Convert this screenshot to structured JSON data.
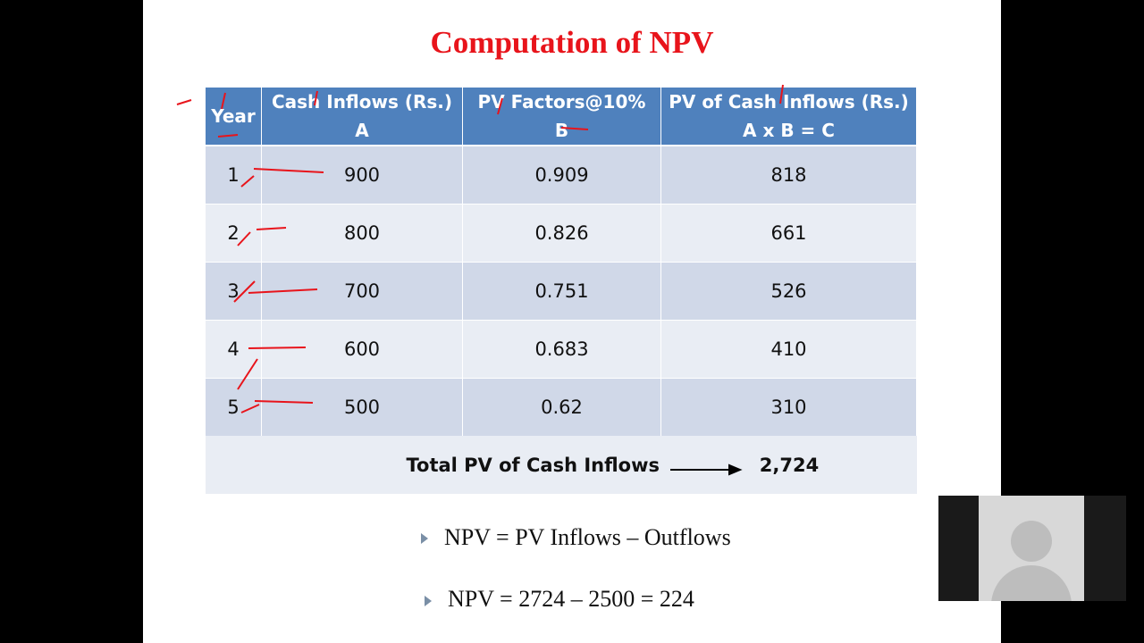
{
  "slide": {
    "title": "Computation of NPV",
    "table": {
      "header": [
        [
          "Year"
        ],
        [
          "Cash Inflows (Rs.)",
          "A"
        ],
        [
          "PV Factors@10%",
          "B"
        ],
        [
          "PV of Cash Inflows (Rs.)",
          "A x B = C"
        ]
      ],
      "rows": [
        [
          "1",
          "900",
          "0.909",
          "818"
        ],
        [
          "2",
          "800",
          "0.826",
          "661"
        ],
        [
          "3",
          "700",
          "0.751",
          "526"
        ],
        [
          "4",
          "600",
          "0.683",
          "410"
        ],
        [
          "5",
          "500",
          "0.62",
          "310"
        ]
      ],
      "total_label": "Total PV of Cash Inflows",
      "total_value": "2,724"
    },
    "bullets": [
      "NPV = PV Inflows – Outflows",
      "NPV = 2724 – 2500 =  224"
    ]
  }
}
